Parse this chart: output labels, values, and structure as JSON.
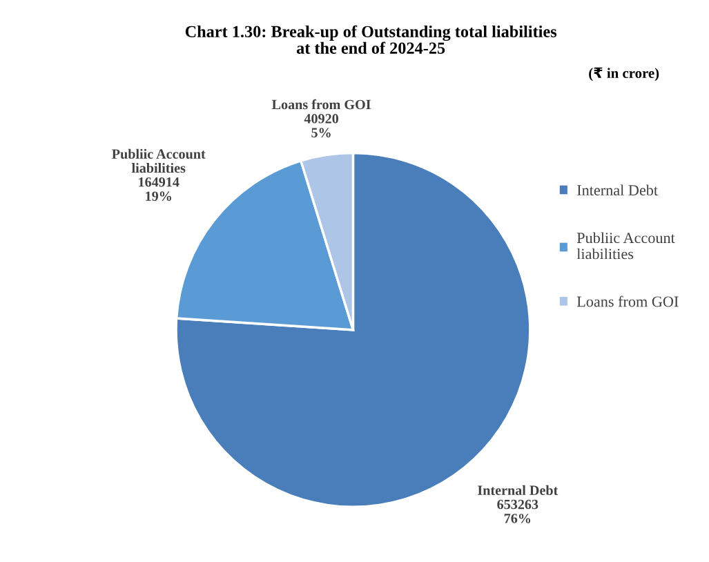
{
  "chart_data": {
    "type": "pie",
    "title": "Chart 1.30: Break-up of Outstanding total liabilities\nat the end of 2024-25",
    "subtitle": "(₹ in crore)",
    "categories": [
      "Internal Debt",
      "Publiic Account liabilities",
      "Loans from GOI"
    ],
    "values": [
      653263,
      164914,
      40920
    ],
    "colors": [
      "#4a7ebb",
      "#5b9bd5",
      "#adc5e7"
    ],
    "value_labels": [
      "653263\n76%",
      "164914\n19%",
      "40920\n5%"
    ],
    "legend": "right"
  }
}
